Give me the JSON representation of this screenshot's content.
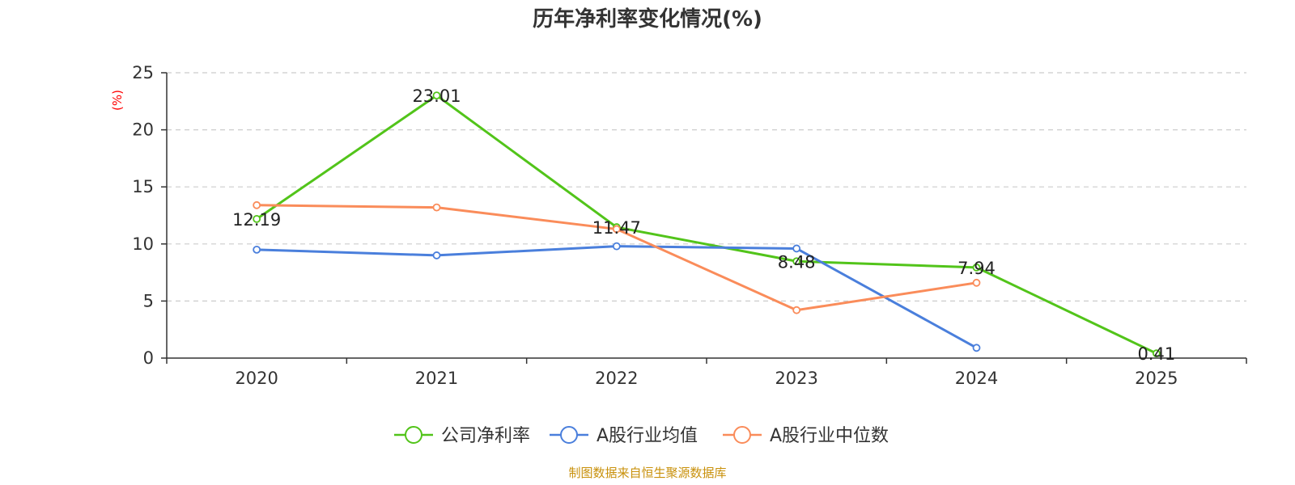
{
  "chart_data": {
    "type": "line",
    "title": "历年净利率变化情况(%)",
    "xlabel": "",
    "ylabel": "(%)",
    "categories": [
      "2020",
      "2021",
      "2022",
      "2023",
      "2024",
      "2025"
    ],
    "ylim": [
      0,
      25
    ],
    "yticks": [
      0,
      5,
      10,
      15,
      20,
      25
    ],
    "grid": "horizontal dashed",
    "legend_position": "bottom-center",
    "series": [
      {
        "name": "公司净利率",
        "color": "#52c41a",
        "values": [
          12.19,
          23.01,
          11.47,
          8.48,
          7.94,
          0.41
        ],
        "labels": [
          "12.19",
          "23.01",
          "11.47",
          "8.48",
          "7.94",
          "0.41"
        ]
      },
      {
        "name": "A股行业均值",
        "color": "#4a7fdc",
        "values": [
          9.5,
          9.0,
          9.8,
          9.6,
          0.9,
          null
        ]
      },
      {
        "name": "A股行业中位数",
        "color": "#fa8c5a",
        "values": [
          13.4,
          13.2,
          11.3,
          4.2,
          6.6,
          null
        ]
      }
    ]
  },
  "source_text": "制图数据来自恒生聚源数据库",
  "colors": {
    "axis": "#333333",
    "grid": "#cccccc",
    "ylabel": "#ff0000",
    "source": "#c8900a"
  }
}
